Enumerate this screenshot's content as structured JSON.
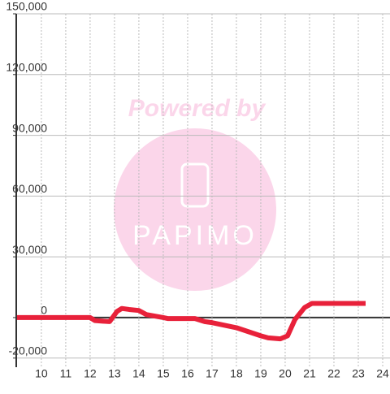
{
  "chart_data": {
    "type": "line",
    "annotations": [
      "Powered by",
      "PAPIMO"
    ],
    "x": [
      9,
      12,
      12.2,
      12.8,
      13.1,
      13.3,
      13.6,
      14,
      14.3,
      15,
      15.2,
      16.3,
      16.7,
      17,
      18,
      19,
      19.3,
      19.8,
      20.1,
      20.4,
      20.8,
      21.1,
      23.3
    ],
    "series": [
      {
        "color": "#e8213a",
        "values": [
          0,
          0,
          -1500,
          -2000,
          3000,
          4500,
          4000,
          3500,
          1500,
          0,
          -500,
          -500,
          -2000,
          -2500,
          -5000,
          -9000,
          -10000,
          -10500,
          -9000,
          -1000,
          5000,
          7000,
          7000
        ]
      }
    ],
    "xlim": [
      8.97,
      24.3
    ],
    "ylim": [
      -24500,
      150000
    ],
    "xticks": [
      10,
      11,
      12,
      13,
      14,
      15,
      16,
      17,
      18,
      19,
      20,
      21,
      22,
      23,
      24
    ],
    "yticks": [
      {
        "value": -20000,
        "label": "-20,000"
      },
      0,
      {
        "value": 30000,
        "label": "30,000"
      },
      {
        "value": 60000,
        "label": "60,000"
      },
      {
        "value": 90000,
        "label": "90,000"
      },
      {
        "value": 120000,
        "label": "120,000"
      },
      {
        "value": 150000,
        "label": "150,000"
      }
    ],
    "grid": true
  }
}
